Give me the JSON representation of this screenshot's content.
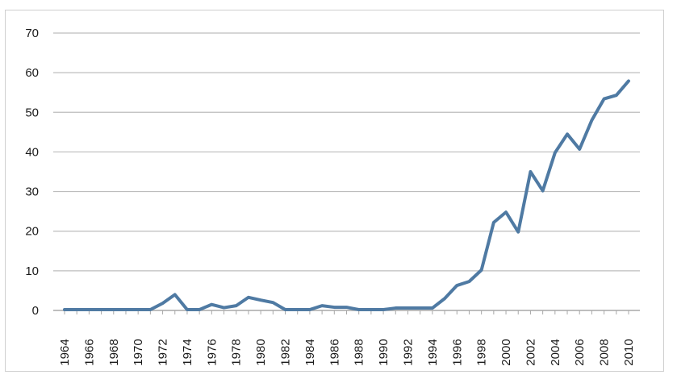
{
  "chart_data": {
    "type": "line",
    "title": "",
    "xlabel": "",
    "ylabel": "",
    "ylim": [
      0,
      70
    ],
    "yticks": [
      0,
      10,
      20,
      30,
      40,
      50,
      60,
      70
    ],
    "x": [
      1964,
      1965,
      1966,
      1967,
      1968,
      1969,
      1970,
      1971,
      1972,
      1973,
      1974,
      1975,
      1976,
      1977,
      1978,
      1979,
      1980,
      1981,
      1982,
      1983,
      1984,
      1985,
      1986,
      1987,
      1988,
      1989,
      1990,
      1991,
      1992,
      1993,
      1994,
      1995,
      1996,
      1997,
      1998,
      1999,
      2000,
      2001,
      2002,
      2003,
      2004,
      2005,
      2006,
      2007,
      2008,
      2009,
      2010
    ],
    "xtick_labels": [
      "1964",
      "1966",
      "1968",
      "1970",
      "1972",
      "1974",
      "1976",
      "1978",
      "1980",
      "1982",
      "1984",
      "1986",
      "1988",
      "1990",
      "1992",
      "1994",
      "1996",
      "1998",
      "2000",
      "2002",
      "2004",
      "2006",
      "2008",
      "2010"
    ],
    "series": [
      {
        "values": [
          0.2,
          0.2,
          0.2,
          0.2,
          0.2,
          0.2,
          0.2,
          0.2,
          1.8,
          4.0,
          0.2,
          0.2,
          1.5,
          0.7,
          1.2,
          3.3,
          2.6,
          2.0,
          0.2,
          0.2,
          0.2,
          1.2,
          0.8,
          0.8,
          0.2,
          0.2,
          0.2,
          0.6,
          0.6,
          0.6,
          0.6,
          3.0,
          6.3,
          7.3,
          10.2,
          22.2,
          24.8,
          19.8,
          35.0,
          30.2,
          39.8,
          44.5,
          40.7,
          48.0,
          53.4,
          54.3,
          57.9
        ],
        "color": "#4f7aa3"
      }
    ],
    "grid": true,
    "legend": "none"
  }
}
